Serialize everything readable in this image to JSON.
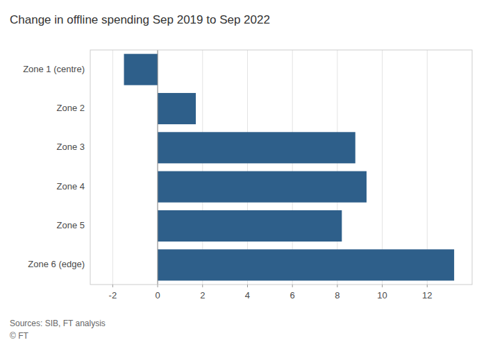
{
  "chart_data": {
    "type": "bar",
    "orientation": "horizontal",
    "title": "Change in offline spending Sep 2019 to Sep 2022",
    "categories": [
      "Zone 1 (centre)",
      "Zone 2",
      "Zone 3",
      "Zone 4",
      "Zone 5",
      "Zone 6 (edge)"
    ],
    "values": [
      -1.5,
      1.7,
      8.8,
      9.3,
      8.2,
      13.2
    ],
    "color": "#2e5f8a",
    "xlim": [
      -3,
      14
    ],
    "xticks": [
      -2,
      0,
      2,
      4,
      6,
      8,
      10,
      12
    ],
    "grid": true,
    "annotations": [
      "Sources: SIB, FT analysis",
      "© FT"
    ]
  }
}
